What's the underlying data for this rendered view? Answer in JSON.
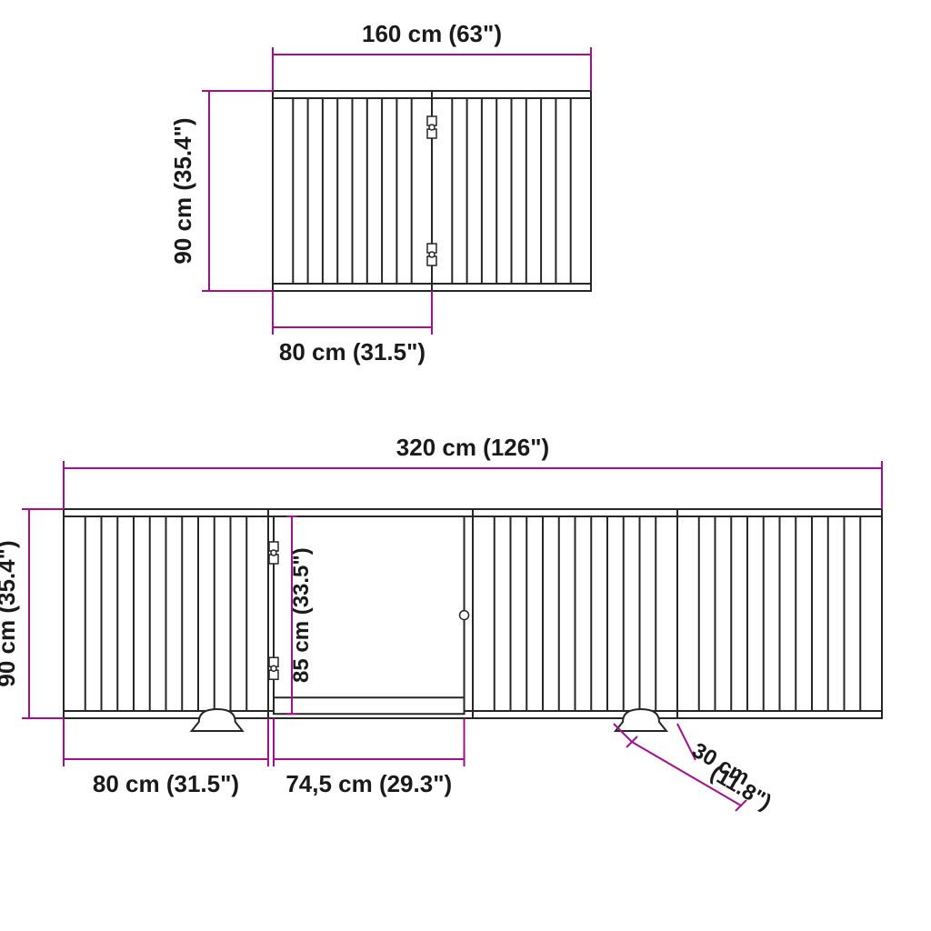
{
  "colors": {
    "accent": "#a3108f",
    "line": "#262626",
    "bg": "#ffffff",
    "text": "#1a1a1a"
  },
  "top": {
    "width_label": "160 cm (63\")",
    "height_label": "90 cm (35.4\")",
    "panel_label": "80 cm (31.5\")"
  },
  "bottom": {
    "width_label": "320 cm (126\")",
    "height_label": "90 cm (35.4\")",
    "door_height_label": "85 cm (33.5\")",
    "panel_label": "80 cm (31.5\")",
    "door_width_label": "74,5 cm (29.3\")",
    "foot_label": "30 cm",
    "foot_sub": "(11.8\")"
  }
}
